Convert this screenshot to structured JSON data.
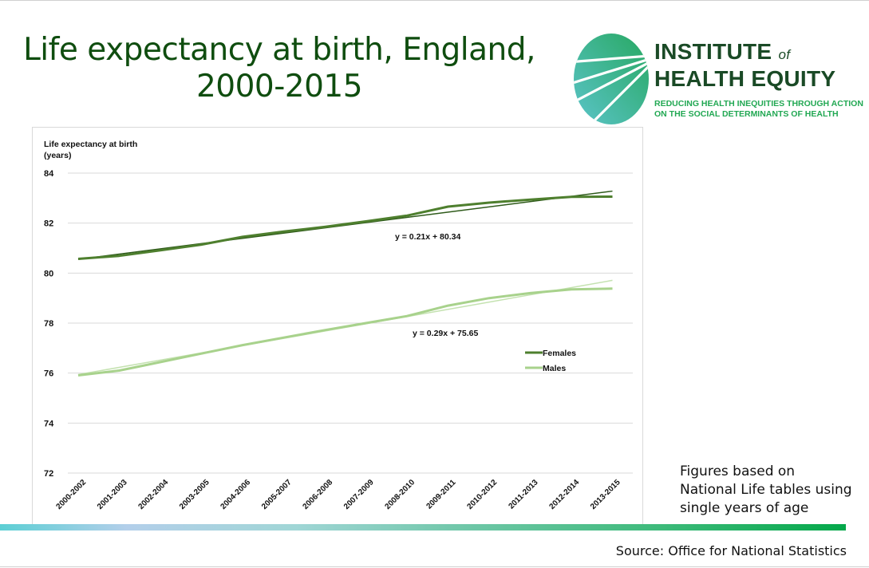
{
  "slide": {
    "title_lines": [
      "Life expectancy at birth, England,",
      "2000-2015"
    ],
    "footnote_lines": [
      "Figures based on",
      "National Life tables using",
      "single years of age"
    ],
    "source": "Source: Office for National Statistics"
  },
  "logo": {
    "name_line1": "INSTITUTE",
    "name_of": "of",
    "name_line2": "HEALTH EQUITY",
    "tagline_line1": "REDUCING HEALTH INEQUITIES THROUGH ACTION",
    "tagline_line2": "ON THE SOCIAL DETERMINANTS OF HEALTH",
    "colors": {
      "dark": "#1a4a26",
      "accent": "#22a853",
      "oval_start": "#27a861",
      "oval_end": "#5bc4c9"
    }
  },
  "chart_data": {
    "type": "line",
    "title": "Life expectancy at birth, England, 2000-2015",
    "ylabel_lines": [
      "Life expectancy at birth",
      "(years)"
    ],
    "xlabel": "",
    "ylim": [
      72,
      84
    ],
    "yticks": [
      72,
      74,
      76,
      78,
      80,
      82,
      84
    ],
    "ytick_labels": [
      "72",
      "74",
      "76",
      "78",
      "80",
      "82",
      "84"
    ],
    "grid": true,
    "legend_position": "lower-right inside plot",
    "categories": [
      "2000-2002",
      "2001-2003",
      "2002-2004",
      "2003-2005",
      "2004-2006",
      "2005-2007",
      "2006-2008",
      "2007-2009",
      "2008-2010",
      "2009-2011",
      "2010-2012",
      "2011-2013",
      "2012-2014",
      "2013-2015"
    ],
    "series": [
      {
        "name": "Females",
        "color": "#4e7f2e",
        "values": [
          80.57,
          80.69,
          80.91,
          81.14,
          81.45,
          81.66,
          81.85,
          82.07,
          82.3,
          82.66,
          82.82,
          82.94,
          83.05,
          83.06
        ],
        "trendline": {
          "slope": 0.21,
          "intercept": 80.34,
          "label": "y = 0.21x + 80.34",
          "color": "#2e5a1a"
        }
      },
      {
        "name": "Males",
        "color": "#a8d28c",
        "values": [
          75.91,
          76.1,
          76.44,
          76.78,
          77.12,
          77.42,
          77.72,
          78.0,
          78.28,
          78.7,
          79.0,
          79.2,
          79.35,
          79.38
        ],
        "trendline": {
          "slope": 0.29,
          "intercept": 75.65,
          "label": "y = 0.29x + 75.65",
          "color": "#c4e2b0"
        }
      }
    ]
  }
}
